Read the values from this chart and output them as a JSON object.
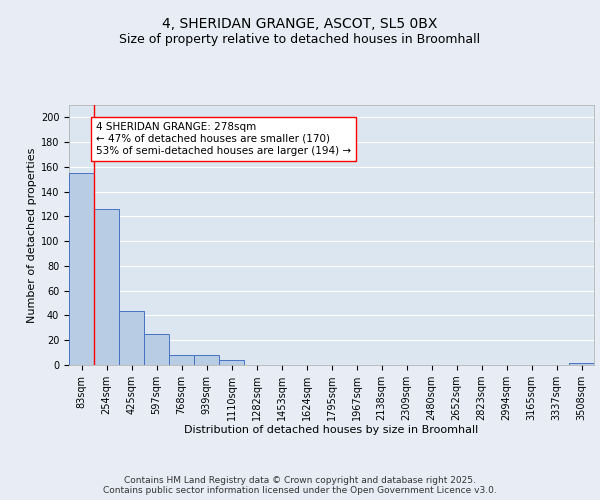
{
  "title_line1": "4, SHERIDAN GRANGE, ASCOT, SL5 0BX",
  "title_line2": "Size of property relative to detached houses in Broomhall",
  "xlabel": "Distribution of detached houses by size in Broomhall",
  "ylabel": "Number of detached properties",
  "categories": [
    "83sqm",
    "254sqm",
    "425sqm",
    "597sqm",
    "768sqm",
    "939sqm",
    "1110sqm",
    "1282sqm",
    "1453sqm",
    "1624sqm",
    "1795sqm",
    "1967sqm",
    "2138sqm",
    "2309sqm",
    "2480sqm",
    "2652sqm",
    "2823sqm",
    "2994sqm",
    "3165sqm",
    "3337sqm",
    "3508sqm"
  ],
  "values": [
    155,
    126,
    44,
    25,
    8,
    8,
    4,
    0,
    0,
    0,
    0,
    0,
    0,
    0,
    0,
    0,
    0,
    0,
    0,
    0,
    2
  ],
  "bar_color": "#b8cce4",
  "bar_edge_color": "#4472c4",
  "bg_color": "#dce6f1",
  "grid_color": "#ffffff",
  "fig_bg_color": "#e8edf5",
  "vline_color": "#ff0000",
  "annotation_text": "4 SHERIDAN GRANGE: 278sqm\n← 47% of detached houses are smaller (170)\n53% of semi-detached houses are larger (194) →",
  "annotation_box_color": "#ff0000",
  "ylim": [
    0,
    210
  ],
  "yticks": [
    0,
    20,
    40,
    60,
    80,
    100,
    120,
    140,
    160,
    180,
    200
  ],
  "footnote_line1": "Contains HM Land Registry data © Crown copyright and database right 2025.",
  "footnote_line2": "Contains public sector information licensed under the Open Government Licence v3.0.",
  "title_fontsize": 10,
  "subtitle_fontsize": 9,
  "axis_label_fontsize": 8,
  "tick_fontsize": 7,
  "annotation_fontsize": 7.5,
  "footnote_fontsize": 6.5
}
